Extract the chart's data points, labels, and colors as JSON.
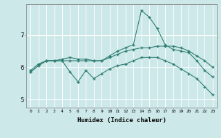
{
  "xlabel": "Humidex (Indice chaleur)",
  "background_color": "#cce8e8",
  "line_color": "#2e7d72",
  "grid_color": "#ffffff",
  "xlim": [
    -0.5,
    23.5
  ],
  "ylim": [
    4.75,
    7.95
  ],
  "yticks": [
    5,
    6,
    7
  ],
  "xticks": [
    0,
    1,
    2,
    3,
    4,
    5,
    6,
    7,
    8,
    9,
    10,
    11,
    12,
    13,
    14,
    15,
    16,
    17,
    18,
    19,
    20,
    21,
    22,
    23
  ],
  "line1_x": [
    0,
    1,
    2,
    3,
    4,
    5,
    6,
    7,
    8,
    9,
    10,
    11,
    12,
    13,
    14,
    15,
    16,
    17,
    18,
    19,
    20,
    21,
    22,
    23
  ],
  "line1_y": [
    5.9,
    6.1,
    6.2,
    6.2,
    6.25,
    6.3,
    6.25,
    6.25,
    6.2,
    6.2,
    6.35,
    6.5,
    6.6,
    6.7,
    7.75,
    7.55,
    7.2,
    6.7,
    6.55,
    6.5,
    6.45,
    6.2,
    5.9,
    5.7
  ],
  "line2_x": [
    0,
    1,
    2,
    3,
    4,
    5,
    6,
    7,
    8,
    9,
    10,
    11,
    12,
    13,
    14,
    15,
    16,
    17,
    18,
    19,
    20,
    21,
    22,
    23
  ],
  "line2_y": [
    5.85,
    6.05,
    6.2,
    6.2,
    6.2,
    6.2,
    6.2,
    6.2,
    6.2,
    6.2,
    6.3,
    6.4,
    6.5,
    6.55,
    6.6,
    6.6,
    6.65,
    6.65,
    6.65,
    6.6,
    6.5,
    6.35,
    6.2,
    6.0
  ],
  "line3_x": [
    0,
    1,
    2,
    3,
    4,
    5,
    6,
    7,
    8,
    9,
    10,
    11,
    12,
    13,
    14,
    15,
    16,
    17,
    18,
    19,
    20,
    21,
    22,
    23
  ],
  "line3_y": [
    5.85,
    6.05,
    6.2,
    6.2,
    6.2,
    5.85,
    5.55,
    5.9,
    5.65,
    5.8,
    5.95,
    6.05,
    6.1,
    6.2,
    6.3,
    6.3,
    6.3,
    6.2,
    6.1,
    5.95,
    5.8,
    5.65,
    5.4,
    5.15
  ]
}
